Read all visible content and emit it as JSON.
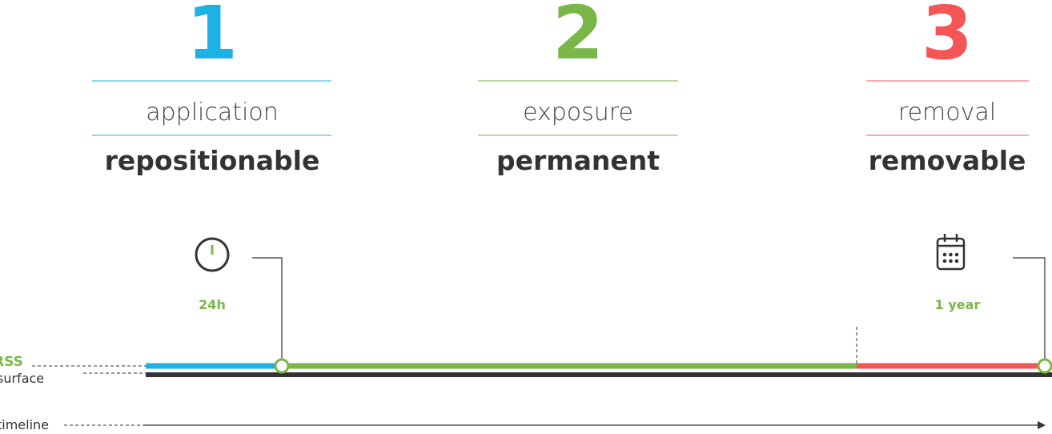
{
  "steps": [
    {
      "number": "1",
      "label": "application",
      "property": "repositionable"
    },
    {
      "number": "2",
      "label": "exposure",
      "property": "permanent"
    },
    {
      "number": "3",
      "label": "removal",
      "property": "removable"
    }
  ],
  "markers": [
    {
      "label": "24h"
    },
    {
      "label": "1 year"
    }
  ],
  "layers": {
    "coating": "RSS",
    "surface": "surface"
  },
  "axis": {
    "label": "timeline"
  }
}
